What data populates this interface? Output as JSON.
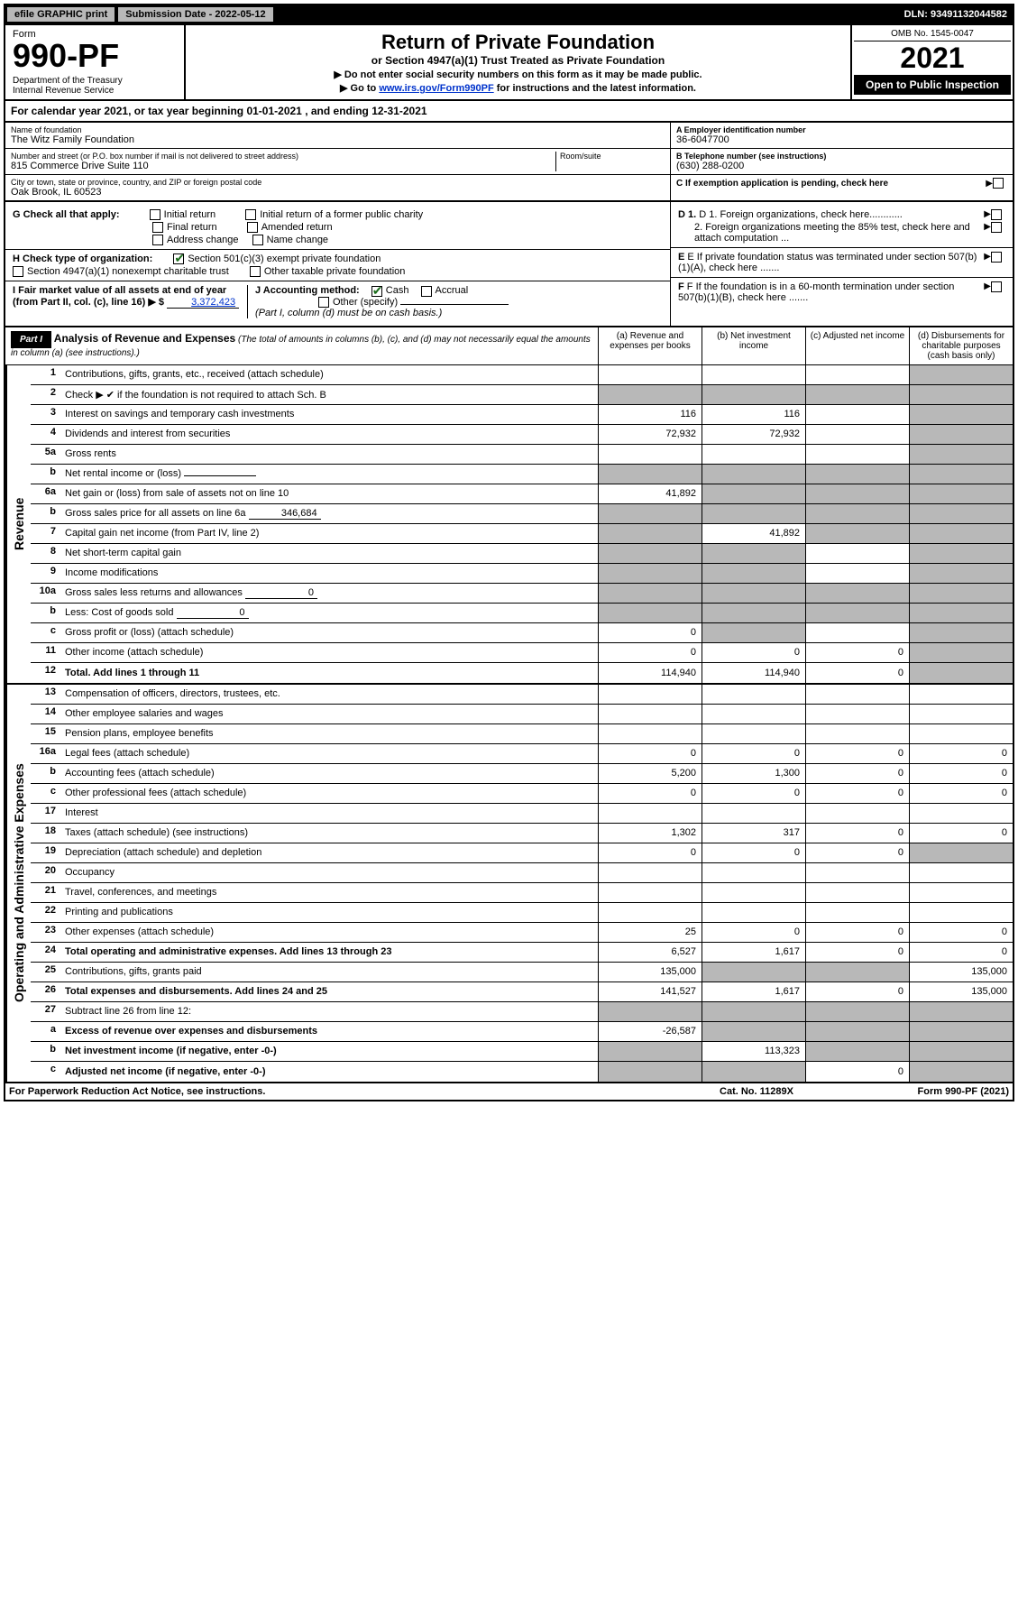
{
  "colors": {
    "black": "#000000",
    "white": "#ffffff",
    "gray_shade": "#b8b8b8",
    "link": "#0033cc",
    "check_green": "#1a6b1a"
  },
  "top_bar": {
    "efile": "efile GRAPHIC print",
    "submission_label": "Submission Date - 2022-05-12",
    "dln": "DLN: 93491132044582"
  },
  "header": {
    "form_label": "Form",
    "form_number": "990-PF",
    "dept": "Department of the Treasury\nInternal Revenue Service",
    "title": "Return of Private Foundation",
    "subtitle": "or Section 4947(a)(1) Trust Treated as Private Foundation",
    "instr1": "▶ Do not enter social security numbers on this form as it may be made public.",
    "instr2_pre": "▶ Go to ",
    "instr2_link": "www.irs.gov/Form990PF",
    "instr2_post": " for instructions and the latest information.",
    "omb": "OMB No. 1545-0047",
    "year": "2021",
    "open": "Open to Public Inspection"
  },
  "cal_year": {
    "text_pre": "For calendar year 2021, or tax year beginning ",
    "begin": "01-01-2021",
    "text_mid": " , and ending ",
    "end": "12-31-2021"
  },
  "entity": {
    "name_lbl": "Name of foundation",
    "name": "The Witz Family Foundation",
    "addr_lbl": "Number and street (or P.O. box number if mail is not delivered to street address)",
    "addr": "815 Commerce Drive Suite 110",
    "room_lbl": "Room/suite",
    "city_lbl": "City or town, state or province, country, and ZIP or foreign postal code",
    "city": "Oak Brook, IL  60523",
    "ein_lbl": "A Employer identification number",
    "ein": "36-6047700",
    "phone_lbl": "B Telephone number (see instructions)",
    "phone": "(630) 288-0200",
    "c_lbl": "C If exemption application is pending, check here"
  },
  "checks": {
    "g_lbl": "G Check all that apply:",
    "g_opts": [
      "Initial return",
      "Initial return of a former public charity",
      "Final return",
      "Amended return",
      "Address change",
      "Name change"
    ],
    "h_lbl": "H Check type of organization:",
    "h_501c3": "Section 501(c)(3) exempt private foundation",
    "h_4947": "Section 4947(a)(1) nonexempt charitable trust",
    "h_other_tax": "Other taxable private foundation",
    "i_lbl": "I Fair market value of all assets at end of year (from Part II, col. (c), line 16) ▶ $",
    "i_val": "3,372,423",
    "j_lbl": "J Accounting method:",
    "j_cash": "Cash",
    "j_accrual": "Accrual",
    "j_other": "Other (specify)",
    "j_note": "(Part I, column (d) must be on cash basis.)",
    "d1": "D 1. Foreign organizations, check here............",
    "d2": "2. Foreign organizations meeting the 85% test, check here and attach computation ...",
    "e": "E If private foundation status was terminated under section 507(b)(1)(A), check here .......",
    "f": "F If the foundation is in a 60-month termination under section 507(b)(1)(B), check here ......."
  },
  "part1": {
    "label": "Part I",
    "title": "Analysis of Revenue and Expenses",
    "title_note": "(The total of amounts in columns (b), (c), and (d) may not necessarily equal the amounts in column (a) (see instructions).)",
    "col_a": "(a) Revenue and expenses per books",
    "col_b": "(b) Net investment income",
    "col_c": "(c) Adjusted net income",
    "col_d": "(d) Disbursements for charitable purposes (cash basis only)",
    "side_revenue": "Revenue",
    "side_expenses": "Operating and Administrative Expenses"
  },
  "rows": {
    "r1": {
      "no": "1",
      "desc": "Contributions, gifts, grants, etc., received (attach schedule)",
      "a": "",
      "b": "",
      "c": "",
      "d": "",
      "shade": [
        "d"
      ]
    },
    "r2": {
      "no": "2",
      "desc": "Check ▶ ✔ if the foundation is not required to attach Sch. B",
      "a": "",
      "b": "",
      "c": "",
      "d": "",
      "shade": [
        "a",
        "b",
        "c",
        "d"
      ]
    },
    "r3": {
      "no": "3",
      "desc": "Interest on savings and temporary cash investments",
      "a": "116",
      "b": "116",
      "c": "",
      "d": "",
      "shade": [
        "d"
      ]
    },
    "r4": {
      "no": "4",
      "desc": "Dividends and interest from securities",
      "a": "72,932",
      "b": "72,932",
      "c": "",
      "d": "",
      "shade": [
        "d"
      ]
    },
    "r5a": {
      "no": "5a",
      "desc": "Gross rents",
      "a": "",
      "b": "",
      "c": "",
      "d": "",
      "shade": [
        "d"
      ]
    },
    "r5b": {
      "no": "b",
      "desc": "Net rental income or (loss)",
      "a": "",
      "b": "",
      "c": "",
      "d": "",
      "shade": [
        "a",
        "b",
        "c",
        "d"
      ],
      "inline": ""
    },
    "r6a": {
      "no": "6a",
      "desc": "Net gain or (loss) from sale of assets not on line 10",
      "a": "41,892",
      "b": "",
      "c": "",
      "d": "",
      "shade": [
        "b",
        "c",
        "d"
      ]
    },
    "r6b": {
      "no": "b",
      "desc": "Gross sales price for all assets on line 6a",
      "inline": "346,684",
      "shade": [
        "a",
        "b",
        "c",
        "d"
      ]
    },
    "r7": {
      "no": "7",
      "desc": "Capital gain net income (from Part IV, line 2)",
      "a": "",
      "b": "41,892",
      "c": "",
      "d": "",
      "shade": [
        "a",
        "c",
        "d"
      ]
    },
    "r8": {
      "no": "8",
      "desc": "Net short-term capital gain",
      "a": "",
      "b": "",
      "c": "",
      "d": "",
      "shade": [
        "a",
        "b",
        "d"
      ]
    },
    "r9": {
      "no": "9",
      "desc": "Income modifications",
      "a": "",
      "b": "",
      "c": "",
      "d": "",
      "shade": [
        "a",
        "b",
        "d"
      ]
    },
    "r10a": {
      "no": "10a",
      "desc": "Gross sales less returns and allowances",
      "inline": "0",
      "shade": [
        "a",
        "b",
        "c",
        "d"
      ]
    },
    "r10b": {
      "no": "b",
      "desc": "Less: Cost of goods sold",
      "inline": "0",
      "shade": [
        "a",
        "b",
        "c",
        "d"
      ]
    },
    "r10c": {
      "no": "c",
      "desc": "Gross profit or (loss) (attach schedule)",
      "a": "0",
      "b": "",
      "c": "",
      "d": "",
      "shade": [
        "b",
        "d"
      ]
    },
    "r11": {
      "no": "11",
      "desc": "Other income (attach schedule)",
      "a": "0",
      "b": "0",
      "c": "0",
      "d": "",
      "shade": [
        "d"
      ]
    },
    "r12": {
      "no": "12",
      "desc": "Total. Add lines 1 through 11",
      "bold": true,
      "a": "114,940",
      "b": "114,940",
      "c": "0",
      "d": "",
      "shade": [
        "d"
      ]
    },
    "r13": {
      "no": "13",
      "desc": "Compensation of officers, directors, trustees, etc.",
      "a": "",
      "b": "",
      "c": "",
      "d": ""
    },
    "r14": {
      "no": "14",
      "desc": "Other employee salaries and wages",
      "a": "",
      "b": "",
      "c": "",
      "d": ""
    },
    "r15": {
      "no": "15",
      "desc": "Pension plans, employee benefits",
      "a": "",
      "b": "",
      "c": "",
      "d": ""
    },
    "r16a": {
      "no": "16a",
      "desc": "Legal fees (attach schedule)",
      "a": "0",
      "b": "0",
      "c": "0",
      "d": "0"
    },
    "r16b": {
      "no": "b",
      "desc": "Accounting fees (attach schedule)",
      "a": "5,200",
      "b": "1,300",
      "c": "0",
      "d": "0"
    },
    "r16c": {
      "no": "c",
      "desc": "Other professional fees (attach schedule)",
      "a": "0",
      "b": "0",
      "c": "0",
      "d": "0"
    },
    "r17": {
      "no": "17",
      "desc": "Interest",
      "a": "",
      "b": "",
      "c": "",
      "d": ""
    },
    "r18": {
      "no": "18",
      "desc": "Taxes (attach schedule) (see instructions)",
      "a": "1,302",
      "b": "317",
      "c": "0",
      "d": "0"
    },
    "r19": {
      "no": "19",
      "desc": "Depreciation (attach schedule) and depletion",
      "a": "0",
      "b": "0",
      "c": "0",
      "d": "",
      "shade": [
        "d"
      ]
    },
    "r20": {
      "no": "20",
      "desc": "Occupancy",
      "a": "",
      "b": "",
      "c": "",
      "d": ""
    },
    "r21": {
      "no": "21",
      "desc": "Travel, conferences, and meetings",
      "a": "",
      "b": "",
      "c": "",
      "d": ""
    },
    "r22": {
      "no": "22",
      "desc": "Printing and publications",
      "a": "",
      "b": "",
      "c": "",
      "d": ""
    },
    "r23": {
      "no": "23",
      "desc": "Other expenses (attach schedule)",
      "a": "25",
      "b": "0",
      "c": "0",
      "d": "0"
    },
    "r24": {
      "no": "24",
      "desc": "Total operating and administrative expenses. Add lines 13 through 23",
      "bold": true,
      "a": "6,527",
      "b": "1,617",
      "c": "0",
      "d": "0"
    },
    "r25": {
      "no": "25",
      "desc": "Contributions, gifts, grants paid",
      "a": "135,000",
      "b": "",
      "c": "",
      "d": "135,000",
      "shade": [
        "b",
        "c"
      ]
    },
    "r26": {
      "no": "26",
      "desc": "Total expenses and disbursements. Add lines 24 and 25",
      "bold": true,
      "a": "141,527",
      "b": "1,617",
      "c": "0",
      "d": "135,000"
    },
    "r27": {
      "no": "27",
      "desc": "Subtract line 26 from line 12:",
      "shade": [
        "a",
        "b",
        "c",
        "d"
      ]
    },
    "r27a": {
      "no": "a",
      "desc": "Excess of revenue over expenses and disbursements",
      "bold": true,
      "a": "-26,587",
      "b": "",
      "c": "",
      "d": "",
      "shade": [
        "b",
        "c",
        "d"
      ]
    },
    "r27b": {
      "no": "b",
      "desc": "Net investment income (if negative, enter -0-)",
      "bold": true,
      "a": "",
      "b": "113,323",
      "c": "",
      "d": "",
      "shade": [
        "a",
        "c",
        "d"
      ]
    },
    "r27c": {
      "no": "c",
      "desc": "Adjusted net income (if negative, enter -0-)",
      "bold": true,
      "a": "",
      "b": "",
      "c": "0",
      "d": "",
      "shade": [
        "a",
        "b",
        "d"
      ]
    }
  },
  "footer": {
    "left": "For Paperwork Reduction Act Notice, see instructions.",
    "center": "Cat. No. 11289X",
    "right": "Form 990-PF (2021)"
  }
}
